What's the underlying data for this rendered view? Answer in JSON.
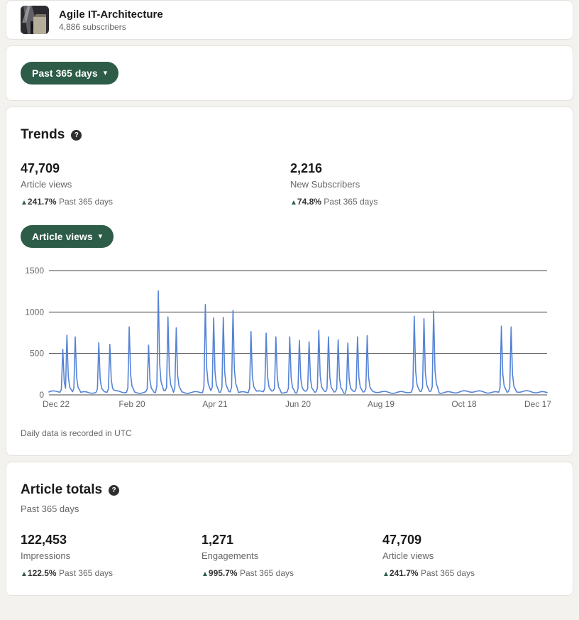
{
  "theme": {
    "page_bg": "#f4f2ee",
    "accent_green": "#2d5c48",
    "chart_line_color": "#5583d6",
    "icons": {
      "caret_down": "▾",
      "help": "?",
      "up_arrow": "▲"
    }
  },
  "header": {
    "title": "Agile IT-Architecture",
    "subscribers": "4,886 subscribers"
  },
  "filter": {
    "range_label": "Past 365 days"
  },
  "trends": {
    "title": "Trends",
    "stats": [
      {
        "value": "47,709",
        "label": "Article views",
        "delta": "241.7%",
        "delta_suffix": "Past 365 days"
      },
      {
        "value": "2,216",
        "label": "New Subscribers",
        "delta": "74.8%",
        "delta_suffix": "Past 365 days"
      }
    ],
    "metric_selector_label": "Article views",
    "footnote": "Daily data is recorded in UTC"
  },
  "chart_data": {
    "type": "line",
    "title": "Article views per day, past 365 days",
    "x_range_days": 360,
    "x_tick_days": [
      0,
      60,
      120,
      180,
      240,
      300,
      360
    ],
    "x_tick_labels": [
      "Dec 22",
      "Feb 20",
      "Apr 21",
      "Jun 20",
      "Aug 19",
      "Oct 18",
      "Dec 17"
    ],
    "ylim": [
      0,
      1500
    ],
    "yticks": [
      0,
      500,
      1000,
      1500
    ],
    "grid": true,
    "baseline": 35,
    "spikes": [
      [
        10,
        550
      ],
      [
        13,
        720
      ],
      [
        19,
        700
      ],
      [
        36,
        630
      ],
      [
        44,
        610
      ],
      [
        58,
        820
      ],
      [
        72,
        600
      ],
      [
        79,
        1255
      ],
      [
        86,
        940
      ],
      [
        92,
        810
      ],
      [
        113,
        1090
      ],
      [
        119,
        930
      ],
      [
        126,
        935
      ],
      [
        133,
        1020
      ],
      [
        146,
        765
      ],
      [
        157,
        745
      ],
      [
        164,
        700
      ],
      [
        174,
        700
      ],
      [
        181,
        660
      ],
      [
        188,
        640
      ],
      [
        195,
        780
      ],
      [
        202,
        700
      ],
      [
        209,
        665
      ],
      [
        216,
        625
      ],
      [
        223,
        700
      ],
      [
        230,
        715
      ],
      [
        264,
        950
      ],
      [
        271,
        920
      ],
      [
        278,
        1010
      ],
      [
        327,
        830
      ],
      [
        334,
        820
      ]
    ]
  },
  "totals": {
    "title": "Article totals",
    "subtitle": "Past 365 days",
    "stats": [
      {
        "value": "122,453",
        "label": "Impressions",
        "delta": "122.5%",
        "delta_suffix": "Past 365 days"
      },
      {
        "value": "1,271",
        "label": "Engagements",
        "delta": "995.7%",
        "delta_suffix": "Past 365 days"
      },
      {
        "value": "47,709",
        "label": "Article views",
        "delta": "241.7%",
        "delta_suffix": "Past 365 days"
      }
    ]
  }
}
